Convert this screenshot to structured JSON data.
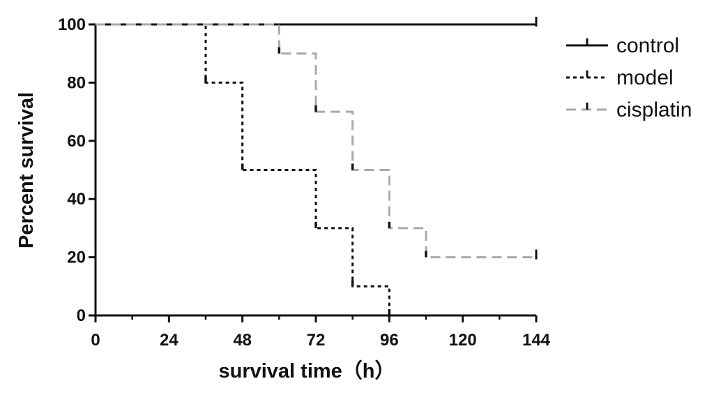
{
  "chart_data": {
    "type": "line",
    "subtype": "survival-step",
    "xlabel": "survival time（h）",
    "ylabel": "Percent survival",
    "xlim": [
      0,
      144
    ],
    "ylim": [
      0,
      100
    ],
    "x_ticks": [
      0,
      24,
      48,
      72,
      96,
      120,
      144
    ],
    "y_ticks": [
      0,
      20,
      40,
      60,
      80,
      100
    ],
    "grid": false,
    "legend_position": "right",
    "series": [
      {
        "name": "control",
        "color": "#111111",
        "line_style": "solid",
        "x": [
          0,
          144
        ],
        "y": [
          100,
          100
        ],
        "censored": [
          [
            144,
            100
          ]
        ]
      },
      {
        "name": "model",
        "color": "#111111",
        "line_style": "dotted",
        "x": [
          0,
          36,
          48,
          72,
          84,
          96
        ],
        "y": [
          100,
          80,
          50,
          30,
          10,
          0
        ],
        "censored": []
      },
      {
        "name": "cisplatin",
        "color": "#a9a9a9",
        "line_style": "dashed",
        "x": [
          0,
          60,
          72,
          84,
          96,
          108,
          144
        ],
        "y": [
          100,
          90,
          70,
          50,
          30,
          20,
          20
        ],
        "censored": [
          [
            144,
            20
          ]
        ]
      }
    ]
  }
}
